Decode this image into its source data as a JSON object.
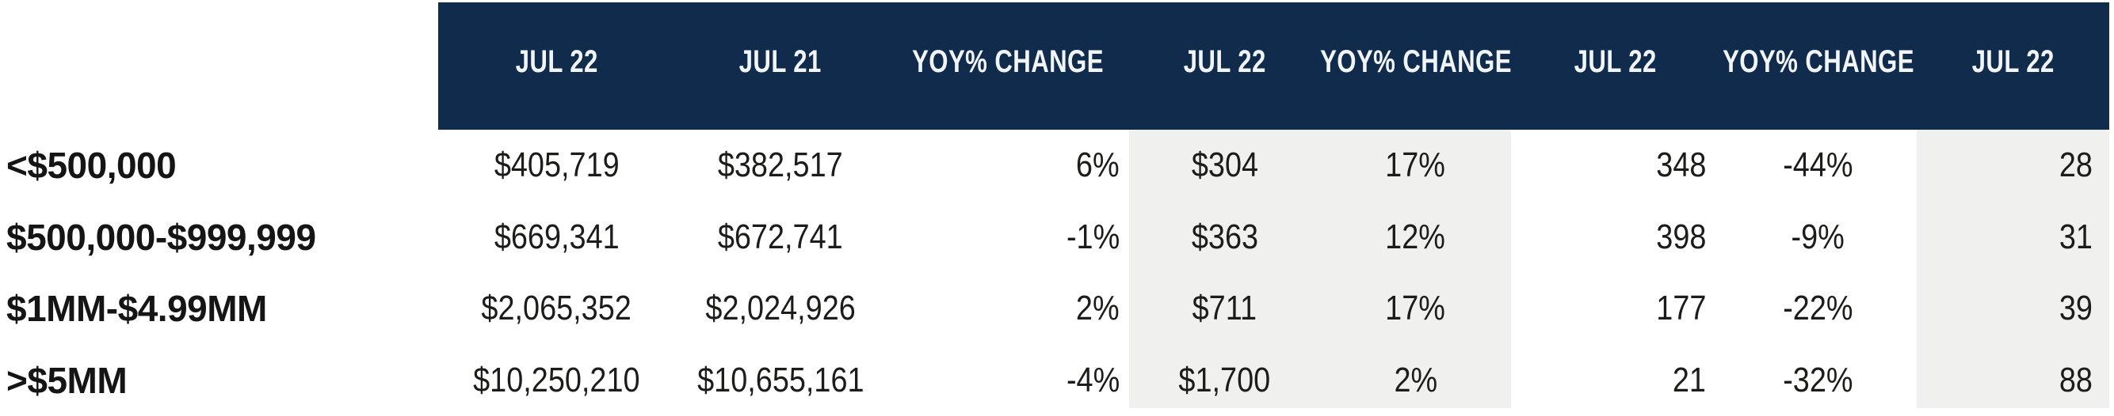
{
  "colors": {
    "header_bg": "#112b4c",
    "highlight_band_bg": "#f0f0ee",
    "header_text": "#f2f5f7",
    "body_text": "#1c1c1a"
  },
  "chart_data": {
    "type": "table",
    "title": "",
    "column_headers": [
      "",
      "JUL 22",
      "JUL 21",
      "YOY% CHANGE",
      "JUL 22",
      "YOY% CHANGE",
      "JUL 22",
      "YOY% CHANGE",
      "JUL 22"
    ],
    "row_labels": [
      "<$500,000",
      "$500,000-$999,999",
      "$1MM-$4.99MM",
      ">$5MM"
    ],
    "rows": [
      [
        "<$500,000",
        "$405,719",
        "$382,517",
        "6%",
        "$304",
        "17%",
        "348",
        "-44%",
        "28"
      ],
      [
        "$500,000-$999,999",
        "$669,341",
        "$672,741",
        "-1%",
        "$363",
        "12%",
        "398",
        "-9%",
        "31"
      ],
      [
        "$1MM-$4.99MM",
        "$2,065,352",
        "$2,024,926",
        "2%",
        "$711",
        "17%",
        "177",
        "-22%",
        "39"
      ],
      [
        ">$5MM",
        "$10,250,210",
        "$10,655,161",
        "-4%",
        "$1,700",
        "2%",
        "21",
        "-32%",
        "88"
      ]
    ],
    "layout_hints": {
      "highlighted_column_groups": [
        [
          4,
          5
        ],
        [
          8
        ]
      ],
      "grid": "off",
      "header_style": "navy band, white condensed uppercase"
    }
  }
}
